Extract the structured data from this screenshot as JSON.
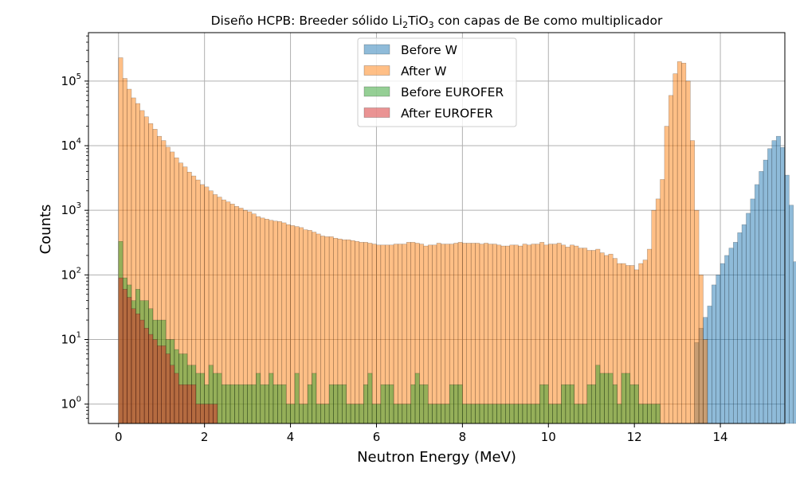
{
  "chart_data": {
    "type": "bar",
    "title_parts": [
      "Diseño HCPB: Breeder sólido Li",
      "2",
      "TiO",
      "3",
      " con capas de Be como multiplicador"
    ],
    "xlabel": "Neutron Energy (MeV)",
    "ylabel": "Counts",
    "xlim": [
      -0.7,
      15.5
    ],
    "ylim_log10": [
      -0.3,
      5.75
    ],
    "y_scale": "log",
    "x_ticks": [
      0,
      2,
      4,
      6,
      8,
      10,
      12,
      14
    ],
    "y_ticks": [
      {
        "exp": 0,
        "base": "10",
        "sup": "0"
      },
      {
        "exp": 1,
        "base": "10",
        "sup": "1"
      },
      {
        "exp": 2,
        "base": "10",
        "sup": "2"
      },
      {
        "exp": 3,
        "base": "10",
        "sup": "3"
      },
      {
        "exp": 4,
        "base": "10",
        "sup": "4"
      },
      {
        "exp": 5,
        "base": "10",
        "sup": "5"
      }
    ],
    "grid": true,
    "legend_position": "top-center",
    "bin_width_mev": 0.1,
    "series": [
      {
        "name": "Before W",
        "color": "#1f77b4",
        "values": [
          9,
          15,
          22,
          33,
          70,
          100,
          150,
          200,
          260,
          320,
          450,
          600,
          900,
          1500,
          2500,
          4000,
          6000,
          9000,
          12000,
          14000,
          9400,
          3500,
          1200,
          160
        ]
      },
      {
        "name": "After W",
        "color": "#ff7f0e",
        "values": [
          230000,
          110000,
          75000,
          55000,
          45000,
          35000,
          28000,
          22000,
          18000,
          14000,
          12000,
          9500,
          8000,
          6500,
          5400,
          4700,
          3900,
          3400,
          2950,
          2500,
          2300,
          2000,
          1750,
          1600,
          1450,
          1350,
          1250,
          1150,
          1080,
          1000,
          950,
          880,
          800,
          760,
          730,
          700,
          680,
          670,
          640,
          600,
          580,
          560,
          540,
          500,
          490,
          460,
          430,
          400,
          390,
          390,
          370,
          360,
          350,
          350,
          340,
          330,
          320,
          320,
          310,
          300,
          290,
          290,
          290,
          290,
          300,
          300,
          300,
          320,
          320,
          310,
          300,
          280,
          290,
          290,
          310,
          300,
          300,
          300,
          310,
          320,
          310,
          310,
          310,
          310,
          300,
          310,
          300,
          300,
          290,
          280,
          280,
          290,
          290,
          280,
          300,
          290,
          300,
          300,
          320,
          290,
          300,
          300,
          310,
          290,
          270,
          290,
          280,
          260,
          260,
          240,
          240,
          250,
          220,
          200,
          210,
          180,
          150,
          150,
          140,
          140,
          120,
          150,
          170,
          250,
          1000,
          1500,
          3000,
          20000,
          60000,
          130000,
          200000,
          190000,
          100000,
          12000,
          1000,
          100,
          10
        ]
      },
      {
        "name": "Before EUROFER",
        "color": "#2ca02c",
        "values": [
          330,
          90,
          70,
          40,
          60,
          40,
          40,
          30,
          20,
          20,
          20,
          10,
          10,
          7,
          6,
          6,
          4,
          4,
          3,
          3,
          2,
          4,
          3,
          3,
          2,
          2,
          2,
          2,
          2,
          2,
          2,
          2,
          3,
          2,
          2,
          3,
          2,
          2,
          2,
          1,
          1,
          3,
          1,
          1,
          2,
          3,
          1,
          1,
          1,
          2,
          2,
          2,
          2,
          1,
          1,
          1,
          1,
          2,
          3,
          1,
          1,
          2,
          2,
          2,
          1,
          1,
          1,
          1,
          2,
          3,
          2,
          2,
          1,
          1,
          1,
          1,
          1,
          2,
          2,
          2,
          1,
          1,
          1,
          1,
          1,
          1,
          1,
          1,
          1,
          1,
          1,
          1,
          1,
          1,
          1,
          1,
          1,
          1,
          2,
          2,
          1,
          1,
          1,
          2,
          2,
          2,
          1,
          1,
          1,
          2,
          2,
          4,
          3,
          3,
          3,
          2,
          1,
          3,
          3,
          2,
          2,
          1,
          1,
          1,
          1,
          1
        ]
      },
      {
        "name": "After EUROFER",
        "color": "#d62728",
        "values": [
          90,
          60,
          45,
          30,
          25,
          20,
          15,
          12,
          10,
          8,
          8,
          6,
          4,
          3,
          2,
          2,
          2,
          2,
          1,
          1,
          1,
          1,
          1
        ]
      }
    ]
  }
}
